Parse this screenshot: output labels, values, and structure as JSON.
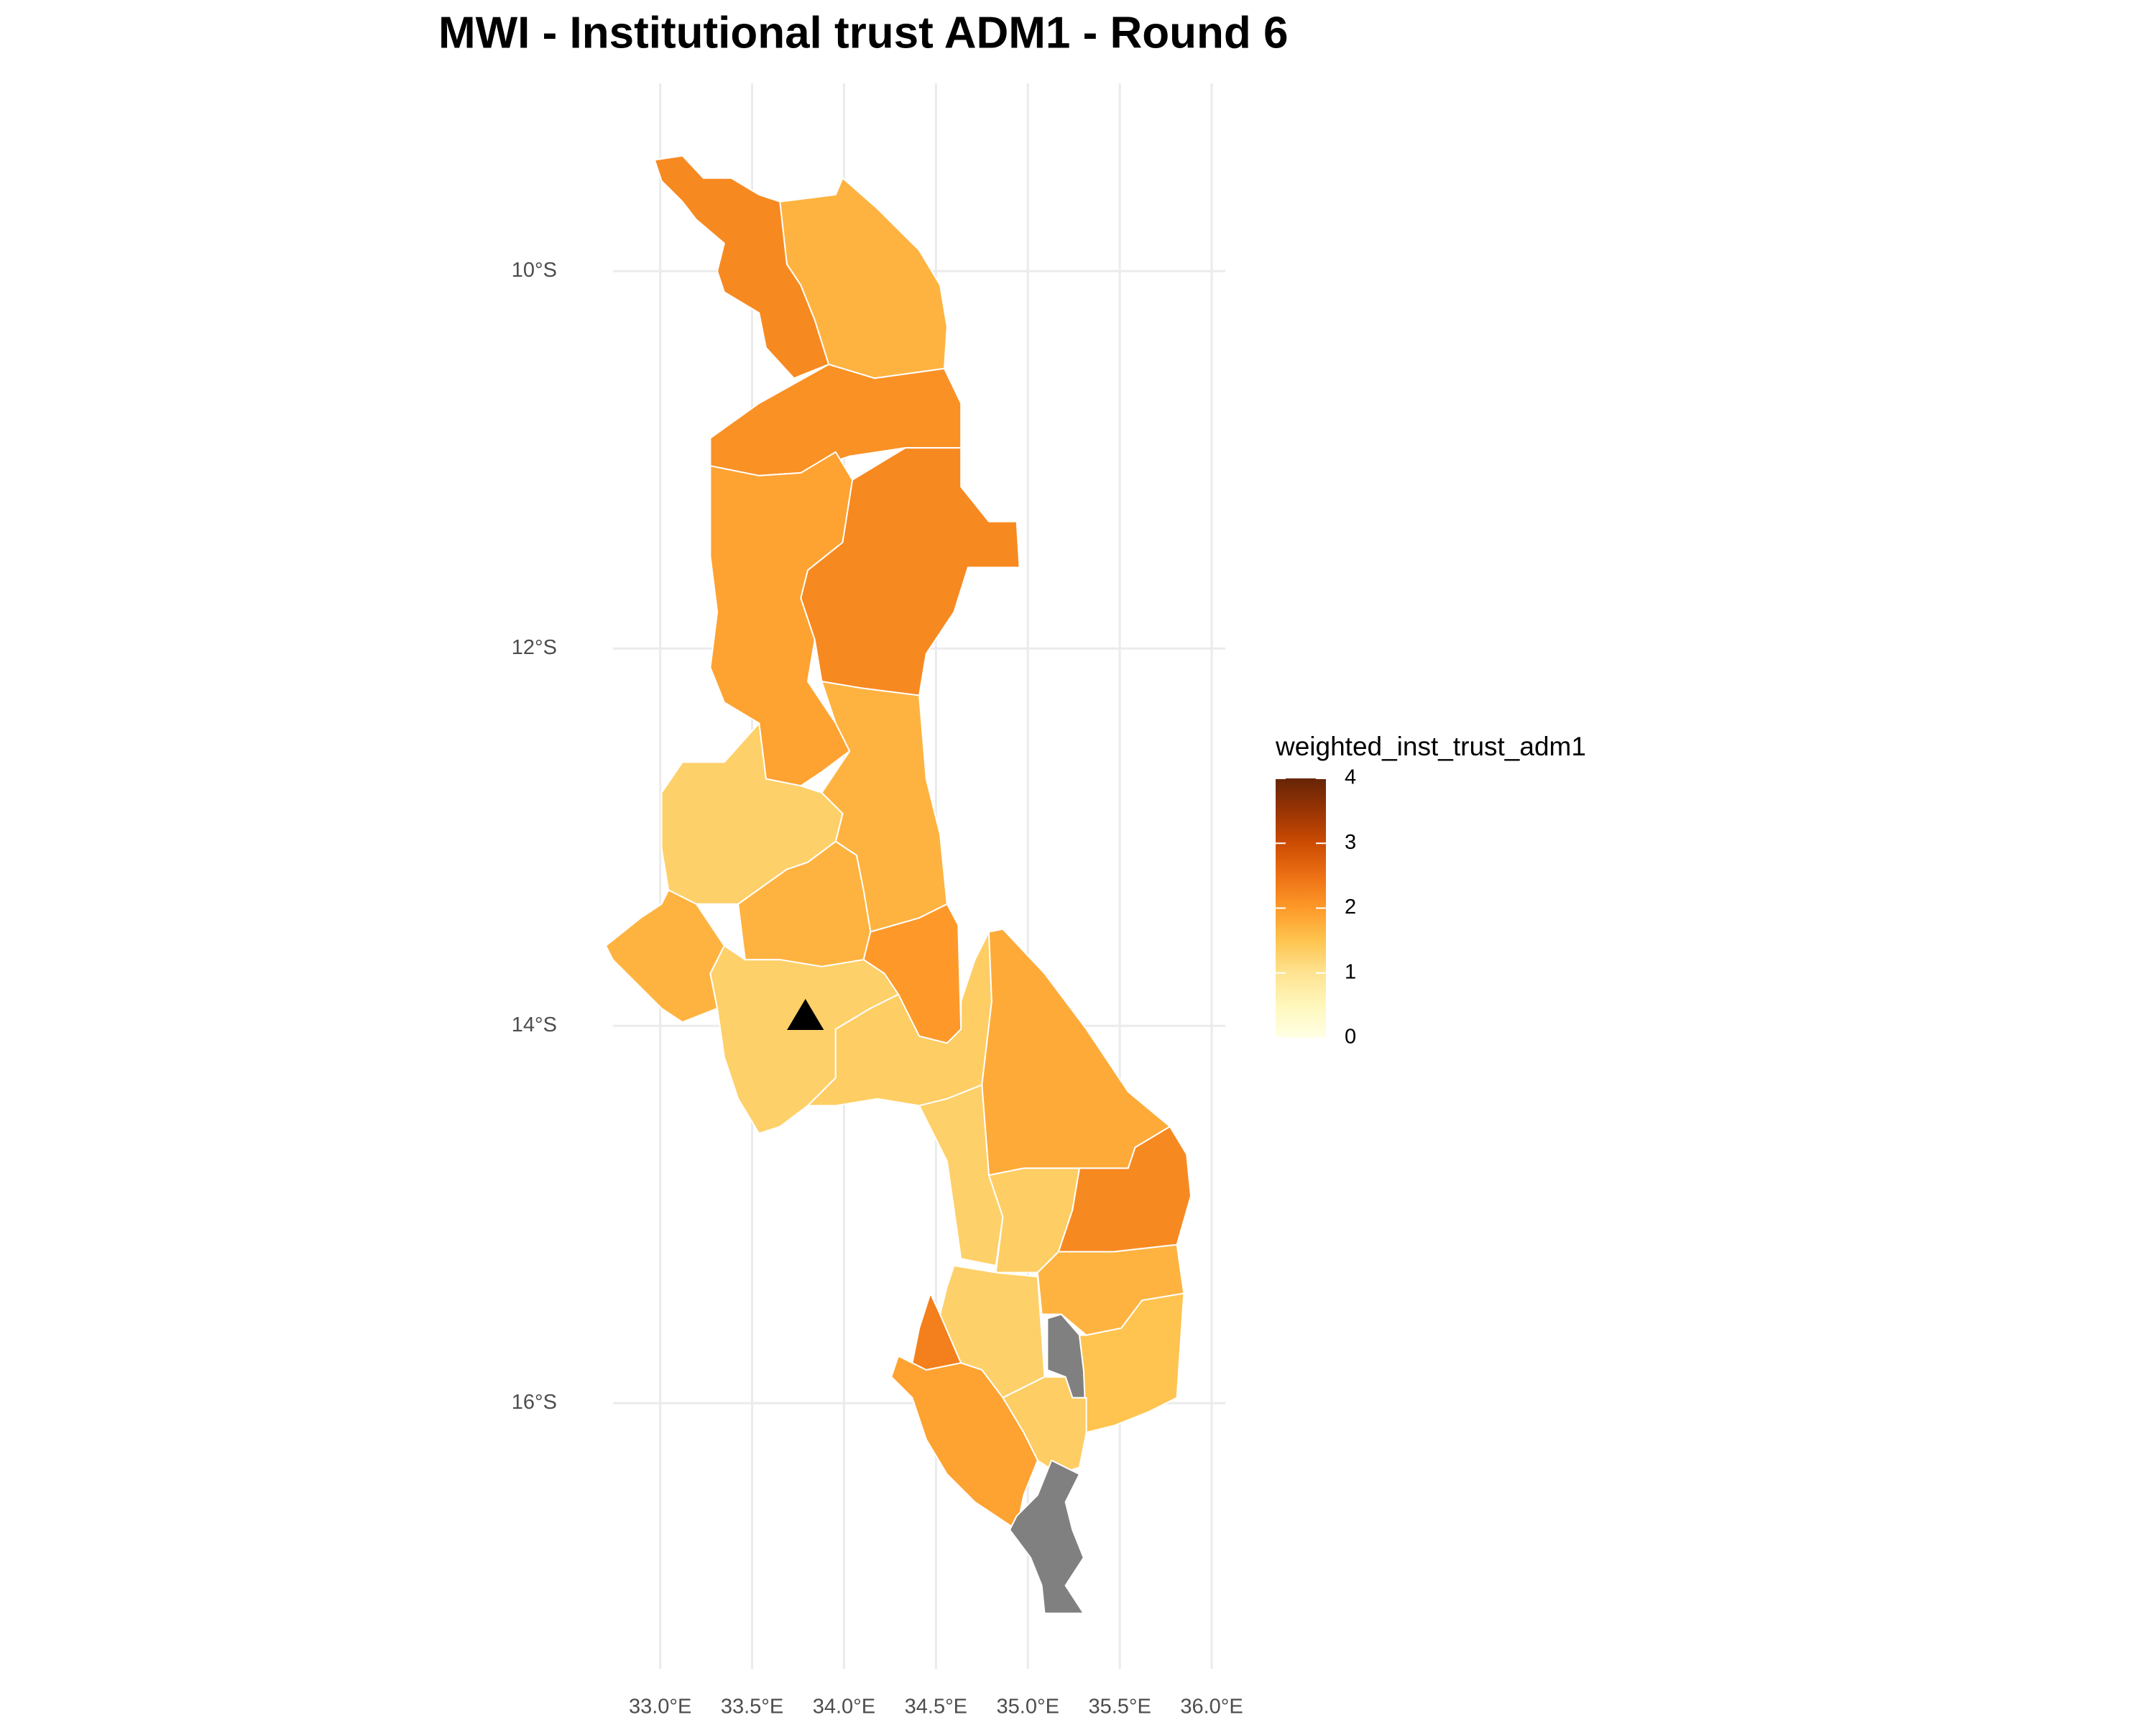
{
  "chart_data": {
    "type": "choropleth",
    "title": "MWI - Institutional trust ADM1 - Round 6",
    "legend_title": "weighted_inst_trust_adm1",
    "values": [
      2.2,
      1.7,
      2.1,
      1.9,
      2.2,
      1.7,
      1.3,
      1.7,
      1.7,
      2.0,
      1.3,
      1.35,
      1.8,
      1.3,
      1.35,
      2.2,
      1.7,
      2.3,
      1.3,
      null,
      1.5,
      1.35,
      1.9,
      null
    ],
    "na_color": "#808080",
    "colorbar": {
      "lim": [
        0,
        4
      ],
      "ticks": [
        0,
        1,
        2,
        3,
        4
      ],
      "colors": [
        "#ffffe5",
        "#fff7bc",
        "#fee391",
        "#fec44f",
        "#fe9929",
        "#ec7014",
        "#cc4c02",
        "#993404",
        "#662506"
      ]
    },
    "xlim": [
      32.75,
      36.08
    ],
    "ylim": [
      -17.4,
      -9.05
    ],
    "xticks": [
      {
        "value": 33,
        "label": "33.0°E"
      },
      {
        "value": 33.5,
        "label": "33.5°E"
      },
      {
        "value": 34,
        "label": "34.0°E"
      },
      {
        "value": 34.5,
        "label": "34.5°E"
      },
      {
        "value": 35,
        "label": "35.0°E"
      },
      {
        "value": 35.5,
        "label": "35.5°E"
      },
      {
        "value": 36,
        "label": "36.0°E"
      }
    ],
    "yticks": [
      {
        "value": -10,
        "label": "10°S"
      },
      {
        "value": -12,
        "label": "12°S"
      },
      {
        "value": -14,
        "label": "14°S"
      },
      {
        "value": -16,
        "label": "16°S"
      }
    ],
    "points": {
      "x": [
        33.79
      ],
      "y": [
        -13.96
      ]
    },
    "grid": true
  }
}
